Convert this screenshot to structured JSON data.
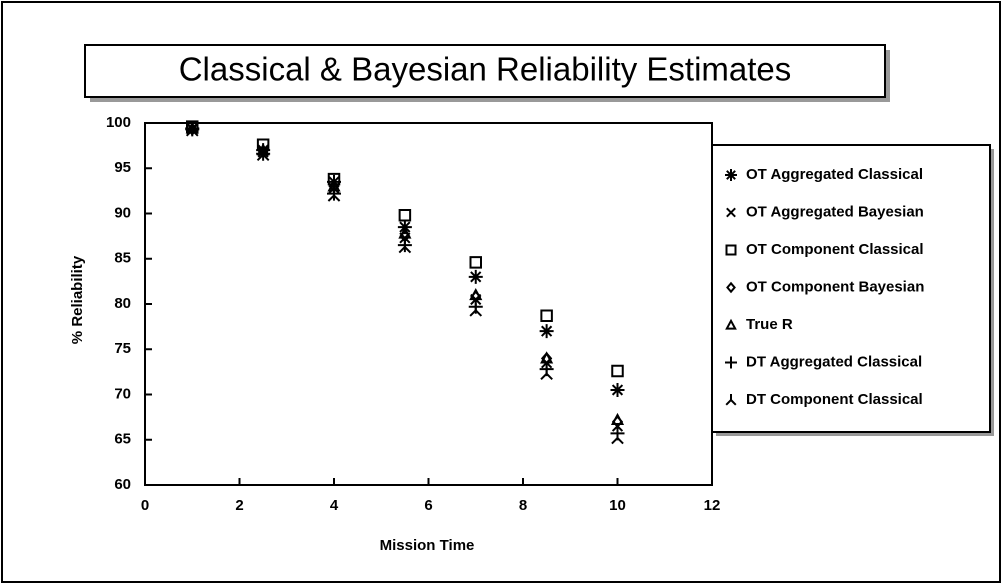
{
  "chart_data": {
    "type": "scatter",
    "title": "Classical & Bayesian Reliability Estimates",
    "xlabel": "Mission Time",
    "ylabel": "% Reliability",
    "x": [
      1,
      2.5,
      4,
      5.5,
      7,
      8.5,
      10
    ],
    "xlim": [
      0,
      12
    ],
    "xticks": [
      0,
      2,
      4,
      6,
      8,
      10,
      12
    ],
    "ylim": [
      60,
      100
    ],
    "yticks": [
      60,
      65,
      70,
      75,
      80,
      85,
      90,
      95,
      100
    ],
    "legend": "right",
    "series": [
      {
        "name": "OT Aggregated Classical",
        "color": "#000000",
        "marker": "asterisk",
        "values": [
          99.4,
          97.0,
          93.5,
          88.5,
          83.0,
          77.0,
          70.5
        ]
      },
      {
        "name": "OT Aggregated Bayesian",
        "color": "#000000",
        "marker": "x",
        "values": [
          99.3,
          96.8,
          92.8,
          87.3,
          80.5,
          73.5,
          66.5
        ]
      },
      {
        "name": "OT Component Classical",
        "color": "#000000",
        "marker": "square",
        "values": [
          99.6,
          97.6,
          93.8,
          89.8,
          84.6,
          78.7,
          72.6
        ]
      },
      {
        "name": "OT Component Bayesian",
        "color": "#000000",
        "marker": "diamond",
        "values": [
          99.3,
          96.9,
          93.0,
          87.5,
          80.8,
          74.0,
          67.0
        ]
      },
      {
        "name": "True R",
        "color": "#000000",
        "marker": "triangle",
        "values": [
          99.4,
          97.0,
          93.0,
          87.8,
          81.0,
          74.0,
          67.2
        ]
      },
      {
        "name": "DT Aggregated Classical",
        "color": "#000000",
        "marker": "plus",
        "values": [
          99.3,
          96.6,
          92.2,
          86.5,
          79.7,
          72.8,
          65.7
        ]
      },
      {
        "name": "DT Component Classical",
        "color": "#000000",
        "marker": "tri",
        "values": [
          99.2,
          96.5,
          92.0,
          86.3,
          79.3,
          72.3,
          65.2
        ]
      }
    ]
  }
}
